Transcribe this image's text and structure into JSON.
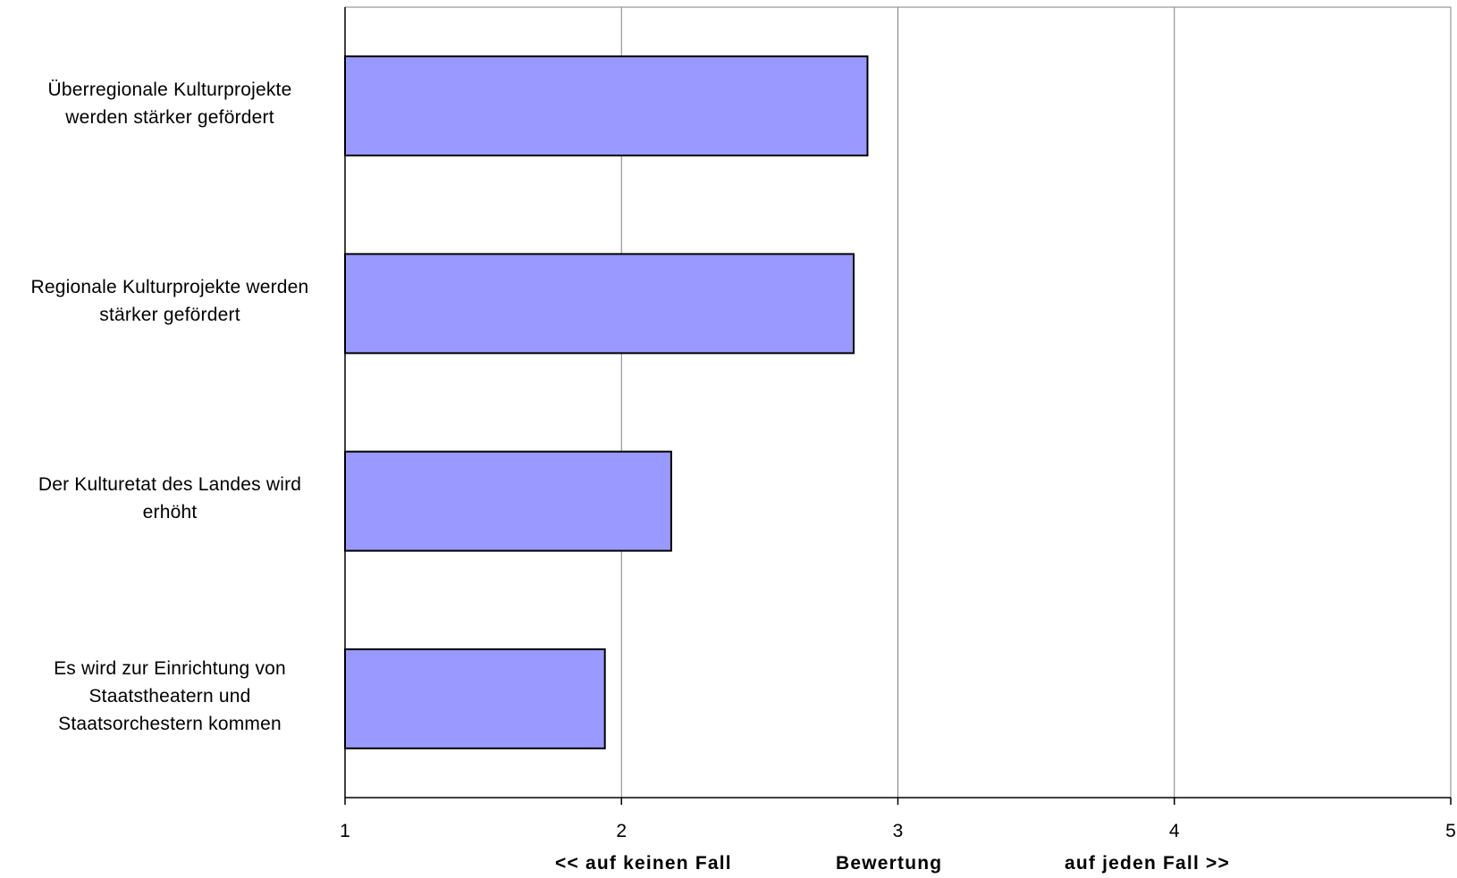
{
  "chart_data": {
    "type": "bar",
    "orientation": "horizontal",
    "categories": [
      "Überregionale Kulturprojekte werden stärker gefördert",
      "Regionale Kulturprojekte werden stärker gefördert",
      "Der Kulturetat des Landes wird erhöht",
      "Es wird zur Einrichtung von Staatstheatern und Staatsorchestern kommen"
    ],
    "category_lines": [
      [
        "Überregionale Kulturprojekte",
        "werden stärker gefördert"
      ],
      [
        "Regionale Kulturprojekte werden",
        "stärker gefördert"
      ],
      [
        "Der Kulturetat des Landes wird",
        "erhöht"
      ],
      [
        "Es wird zur Einrichtung von",
        "Staatstheatern und",
        "Staatsorchestern kommen"
      ]
    ],
    "values": [
      2.89,
      2.84,
      2.18,
      1.94
    ],
    "xlim": [
      1,
      5
    ],
    "x_ticks": [
      "1",
      "2",
      "3",
      "4",
      "5"
    ],
    "xlabel": {
      "left": "<< auf keinen Fall",
      "center": "Bewertung",
      "right": "auf jeden Fall >>"
    },
    "grid": "vertical",
    "legend": "none",
    "colors": {
      "bar_fill": "#9999ff",
      "bar_stroke": "#000000",
      "grid": "#808080",
      "axis": "#000000"
    }
  }
}
